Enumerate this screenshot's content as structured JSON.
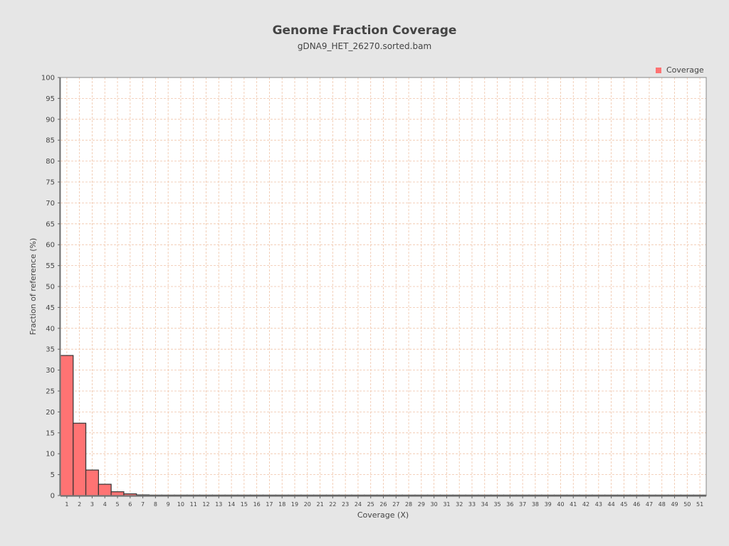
{
  "chart_data": {
    "type": "bar",
    "title": "Genome Fraction Coverage",
    "subtitle": "gDNA9_HET_26270.sorted.bam",
    "xlabel": "Coverage (X)",
    "ylabel": "Fraction of reference (%)",
    "ylim": [
      0,
      100
    ],
    "ytick_step": 5,
    "categories": [
      "1",
      "2",
      "3",
      "4",
      "5",
      "6",
      "7",
      "8",
      "9",
      "10",
      "11",
      "12",
      "13",
      "14",
      "15",
      "16",
      "17",
      "18",
      "19",
      "20",
      "21",
      "22",
      "23",
      "24",
      "25",
      "26",
      "27",
      "28",
      "29",
      "30",
      "31",
      "32",
      "33",
      "34",
      "35",
      "36",
      "37",
      "38",
      "39",
      "40",
      "41",
      "42",
      "43",
      "44",
      "45",
      "46",
      "47",
      "48",
      "49",
      "50",
      "51"
    ],
    "series": [
      {
        "name": "Coverage",
        "color": "#ff7373",
        "values": [
          33.5,
          17.3,
          6.1,
          2.7,
          0.9,
          0.4,
          0.15,
          0.08,
          0.05,
          0.03,
          0.02,
          0.02,
          0.01,
          0.01,
          0.01,
          0.01,
          0.01,
          0.01,
          0.01,
          0.01,
          0.01,
          0.01,
          0.01,
          0.01,
          0.01,
          0.01,
          0.01,
          0.01,
          0.01,
          0.01,
          0.01,
          0.01,
          0.01,
          0.01,
          0.01,
          0.01,
          0.01,
          0.01,
          0.01,
          0.01,
          0.01,
          0.01,
          0.01,
          0.01,
          0.01,
          0.01,
          0.01,
          0.01,
          0.01,
          0.01,
          0.01
        ]
      }
    ],
    "grid": true,
    "grid_color": "#f0c4a8",
    "legend_position": "top-right"
  }
}
